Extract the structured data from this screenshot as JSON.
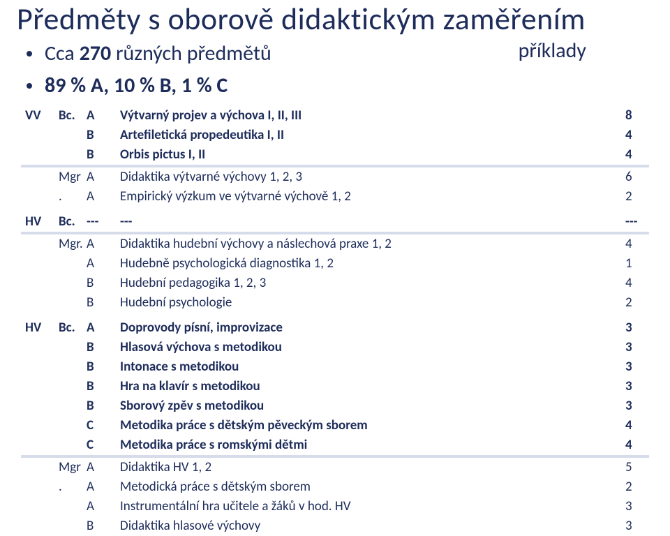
{
  "colors": {
    "text": "#1d2c5a",
    "band": "#d6dcea",
    "bg": "#ffffff"
  },
  "title": "Předměty s oborově didaktickým zaměřením",
  "example_label": "příklady",
  "bullets": {
    "line1_prefix": "Cca ",
    "line1_bold1": "270",
    "line1_mid": " různých předmětů",
    "line2": "89 % A, 10 % B, 1 % C"
  },
  "tables": [
    {
      "rows": [
        {
          "c1": "VV",
          "c2": "Bc.",
          "c3a": "A",
          "c3b": "Výtvarný projev a výchova I, II, III",
          "c4": "8",
          "bold": true
        },
        {
          "c1": "",
          "c2": "",
          "c3a": "B",
          "c3b": "Artefiletická propedeutika I, II",
          "c4": "4",
          "bold": true
        },
        {
          "c1": "",
          "c2": "",
          "c3a": "B",
          "c3b": "Orbis pictus I, II",
          "c4": "4",
          "bold": true
        },
        {
          "band": true
        },
        {
          "c1": "",
          "c2": "Mgr",
          "c3a": "A",
          "c3b": "Didaktika výtvarné výchovy 1, 2, 3",
          "c4": "6"
        },
        {
          "c1": "",
          "c2": ".",
          "c3a": "A",
          "c3b": "Empirický výzkum ve výtvarné výchově 1, 2",
          "c4": "2"
        }
      ]
    },
    {
      "rows": [
        {
          "c1": "HV",
          "c2": "Bc.",
          "c3a": "---",
          "c3b": "---",
          "c4": "---",
          "bold": true
        },
        {
          "band": true
        },
        {
          "c1": "",
          "c2": "Mgr.",
          "c3a": "A",
          "c3b": "Didaktika hudební výchovy a náslechová praxe 1, 2",
          "c4": "4"
        },
        {
          "c1": "",
          "c2": "",
          "c3a": "A",
          "c3b": "Hudebně psychologická diagnostika 1, 2",
          "c4": "1"
        },
        {
          "c1": "",
          "c2": "",
          "c3a": "B",
          "c3b": "Hudební pedagogika 1, 2, 3",
          "c4": "4"
        },
        {
          "c1": "",
          "c2": "",
          "c3a": "B",
          "c3b": "Hudební psychologie",
          "c4": "2"
        }
      ]
    },
    {
      "rows": [
        {
          "c1": "HV",
          "c2": "Bc.",
          "c3a": "A",
          "c3b": "Doprovody písní, improvizace",
          "c4": "3",
          "bold": true
        },
        {
          "c1": "",
          "c2": "",
          "c3a": "B",
          "c3b": "Hlasová výchova s metodikou",
          "c4": "3",
          "bold": true
        },
        {
          "c1": "",
          "c2": "",
          "c3a": "B",
          "c3b": "Intonace s metodikou",
          "c4": "3",
          "bold": true
        },
        {
          "c1": "",
          "c2": "",
          "c3a": "B",
          "c3b": "Hra na klavír s metodikou",
          "c4": "3",
          "bold": true
        },
        {
          "c1": "",
          "c2": "",
          "c3a": "B",
          "c3b": "Sborový zpěv s metodikou",
          "c4": "3",
          "bold": true
        },
        {
          "c1": "",
          "c2": "",
          "c3a": "C",
          "c3b": "Metodika práce s dětským pěveckým sborem",
          "c4": "4",
          "bold": true
        },
        {
          "c1": "",
          "c2": "",
          "c3a": "C",
          "c3b": "Metodika práce s romskými dětmi",
          "c4": "4",
          "bold": true
        },
        {
          "band": true
        },
        {
          "c1": "",
          "c2": "Mgr",
          "c3a": "A",
          "c3b": "Didaktika HV 1, 2",
          "c4": "5"
        },
        {
          "c1": "",
          "c2": ".",
          "c3a": "A",
          "c3b": "Metodická práce s dětským sborem",
          "c4": "2"
        },
        {
          "c1": "",
          "c2": "",
          "c3a": "A",
          "c3b": "Instrumentální hra učitele a žáků v hod. HV",
          "c4": "3"
        },
        {
          "c1": "",
          "c2": "",
          "c3a": "B",
          "c3b": "Didaktika hlasové výchovy",
          "c4": "3"
        }
      ]
    }
  ]
}
